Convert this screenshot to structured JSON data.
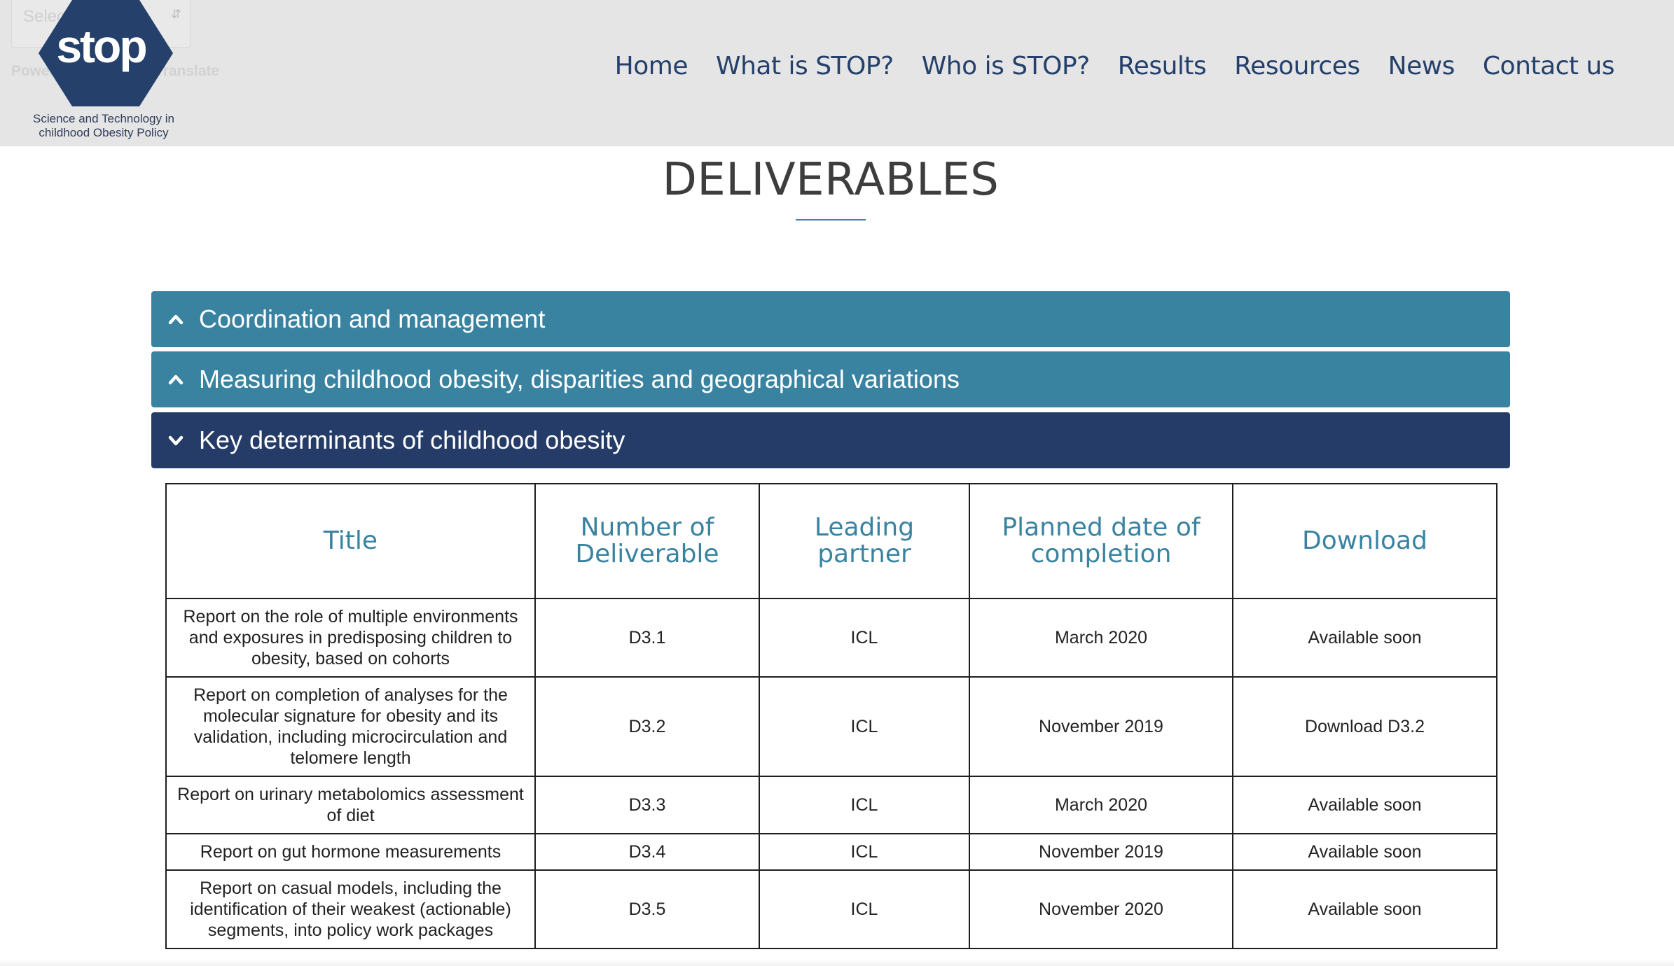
{
  "translate": {
    "select_label": "Select Language",
    "powered_by": "Powered by",
    "translate_word": "Translate"
  },
  "logo": {
    "word": "stop",
    "tagline_line1": "Science and Technology in",
    "tagline_line2": "childhood Obesity Policy",
    "color": "#24406b"
  },
  "nav": {
    "items": [
      {
        "label": "Home"
      },
      {
        "label": "What is STOP?"
      },
      {
        "label": "Who is STOP?"
      },
      {
        "label": "Results"
      },
      {
        "label": "Resources"
      },
      {
        "label": "News"
      },
      {
        "label": "Contact us"
      }
    ]
  },
  "page": {
    "title": "DELIVERABLES"
  },
  "accordion": [
    {
      "label": "Coordination and management",
      "state": "collapsed",
      "icon": "chevron-up-icon"
    },
    {
      "label": "Measuring childhood obesity, disparities and geographical variations",
      "state": "collapsed",
      "icon": "chevron-up-icon"
    },
    {
      "label": "Key determinants of childhood obesity",
      "state": "open",
      "icon": "chevron-down-icon"
    }
  ],
  "table": {
    "headers": [
      "Title",
      "Number of Deliverable",
      "Leading partner",
      "Planned date of completion",
      "Download"
    ],
    "rows": [
      {
        "title": "Report on the role of multiple environments and exposures in predisposing children to obesity, based on cohorts",
        "number": "D3.1",
        "partner": "ICL",
        "date": "March 2020",
        "download": "Available soon"
      },
      {
        "title": "Report on completion of analyses for the molecular signature for obesity and its validation, including microcirculation and telomere length",
        "number": "D3.2",
        "partner": "ICL",
        "date": "November 2019",
        "download": "Download D3.2"
      },
      {
        "title": "Report on urinary metabolomics assessment of diet",
        "number": "D3.3",
        "partner": "ICL",
        "date": "March 2020",
        "download": "Available soon"
      },
      {
        "title": "Report on gut hormone measurements",
        "number": "D3.4",
        "partner": "ICL",
        "date": "November 2019",
        "download": "Available soon"
      },
      {
        "title": "Report on casual models, including the identification of their weakest (actionable) segments, into policy work packages",
        "number": "D3.5",
        "partner": "ICL",
        "date": "November 2020",
        "download": "Available soon"
      }
    ]
  },
  "colors": {
    "header_bg": "#e5e5e5",
    "nav_text": "#24406b",
    "accordion_collapsed": "#3983a1",
    "accordion_open": "#253c68",
    "table_header_text": "#3983a1"
  }
}
